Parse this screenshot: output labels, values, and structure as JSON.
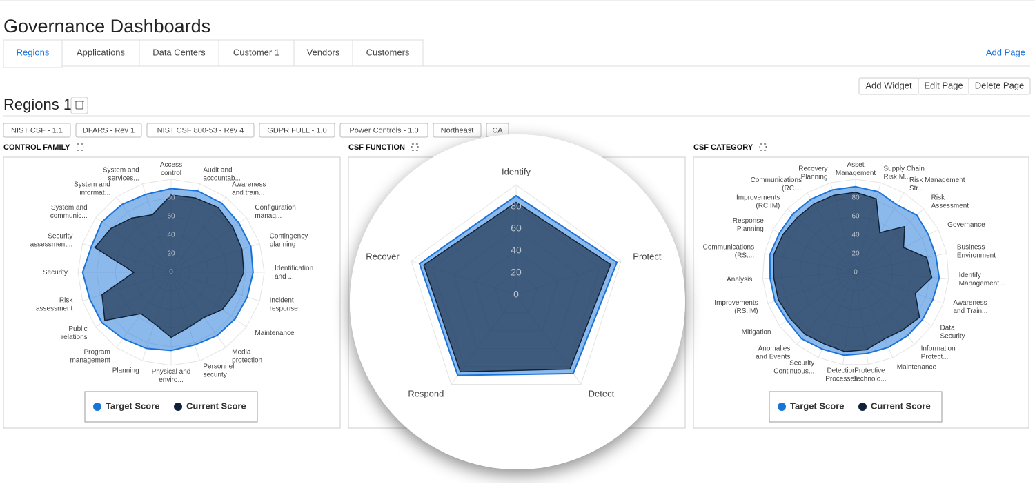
{
  "header": {
    "title": "Governance Dashboards",
    "add_page": "Add Page"
  },
  "tabs": [
    "Regions",
    "Applications",
    "Data Centers",
    "Customer 1",
    "Vendors",
    "Customers"
  ],
  "active_tab": 0,
  "buttons": [
    "Add Widget",
    "Edit Page",
    "Delete Page"
  ],
  "page_title": "Regions 1",
  "filters": [
    "NIST CSF - 1.1",
    "DFARS - Rev 1",
    "NIST CSF 800-53 - Rev 4",
    "GDPR FULL - 1.0",
    "Power Controls - 1.0",
    "Northeast",
    "CA"
  ],
  "chart_data": [
    {
      "type": "radar",
      "title": "CONTROL FAMILY",
      "categories": [
        "Access control",
        "Audit and accountab...",
        "Awareness and train...",
        "Configuration manag...",
        "Contingency planning",
        "Identification and ...",
        "Incident response",
        "Maintenance",
        "Media protection",
        "Personnel security",
        "Physical and enviro...",
        "Planning",
        "Program management",
        "Public relations",
        "Risk assessment",
        "Security",
        "Security assessment...",
        "System and communic...",
        "System and informat...",
        "System and services..."
      ],
      "rlim": [
        0,
        100
      ],
      "rticks": [
        0,
        20,
        40,
        60,
        80
      ],
      "legend": true,
      "series": [
        {
          "name": "Target Score",
          "color": "#1a73d9",
          "values": [
            90,
            92,
            92,
            90,
            90,
            88,
            86,
            85,
            84,
            82,
            84,
            86,
            88,
            92,
            92,
            95,
            90,
            92,
            90,
            88
          ]
        },
        {
          "name": "Current Score",
          "color": "#0f2238",
          "values": [
            83,
            84,
            86,
            82,
            80,
            78,
            72,
            68,
            60,
            62,
            70,
            58,
            55,
            88,
            78,
            40,
            86,
            80,
            72,
            65
          ]
        }
      ]
    },
    {
      "type": "radar",
      "title": "CSF FUNCTION",
      "categories": [
        "Identify",
        "Protect",
        "Detect",
        "Respond",
        "Recover"
      ],
      "rlim": [
        0,
        100
      ],
      "rticks": [
        0,
        20,
        40,
        60,
        80
      ],
      "legend": false,
      "series": [
        {
          "color": "#1a73d9",
          "values": [
            90,
            96,
            88,
            90,
            92
          ]
        },
        {
          "color": "#0f2238",
          "values": [
            84,
            90,
            83,
            86,
            88
          ]
        }
      ]
    },
    {
      "type": "radar",
      "title": "CSF CATEGORY",
      "categories": [
        "Asset Management",
        "Supply Chain Risk M...",
        "Risk Management Str...",
        "Risk Assessment",
        "Governance",
        "Business Environment",
        "Identify Management...",
        "Awareness and Train...",
        "Data Security",
        "Information Protect...",
        "Maintenance",
        "Protective Technolo...",
        "Detection Processes",
        "Security Continuous...",
        "Anomalies and Events",
        "Mitigation",
        "Improvements (RS.IM)",
        "Analysis",
        "Communications (RS....",
        "Response Planning",
        "Improvements (RC.IM)",
        "Communications (RC....",
        "Recovery Planning"
      ],
      "rlim": [
        0,
        100
      ],
      "rticks": [
        0,
        20,
        40,
        60,
        80
      ],
      "legend": true,
      "series": [
        {
          "name": "Target Score",
          "color": "#1a73d9",
          "values": [
            92,
            90,
            85,
            90,
            88,
            88,
            90,
            88,
            88,
            88,
            88,
            88,
            90,
            90,
            92,
            90,
            92,
            92,
            94,
            92,
            92,
            92,
            92
          ]
        },
        {
          "name": "Current Score",
          "color": "#0f2238",
          "values": [
            86,
            82,
            50,
            72,
            58,
            78,
            82,
            68,
            84,
            80,
            78,
            84,
            86,
            84,
            86,
            86,
            88,
            88,
            90,
            88,
            86,
            86,
            86
          ]
        }
      ]
    }
  ]
}
